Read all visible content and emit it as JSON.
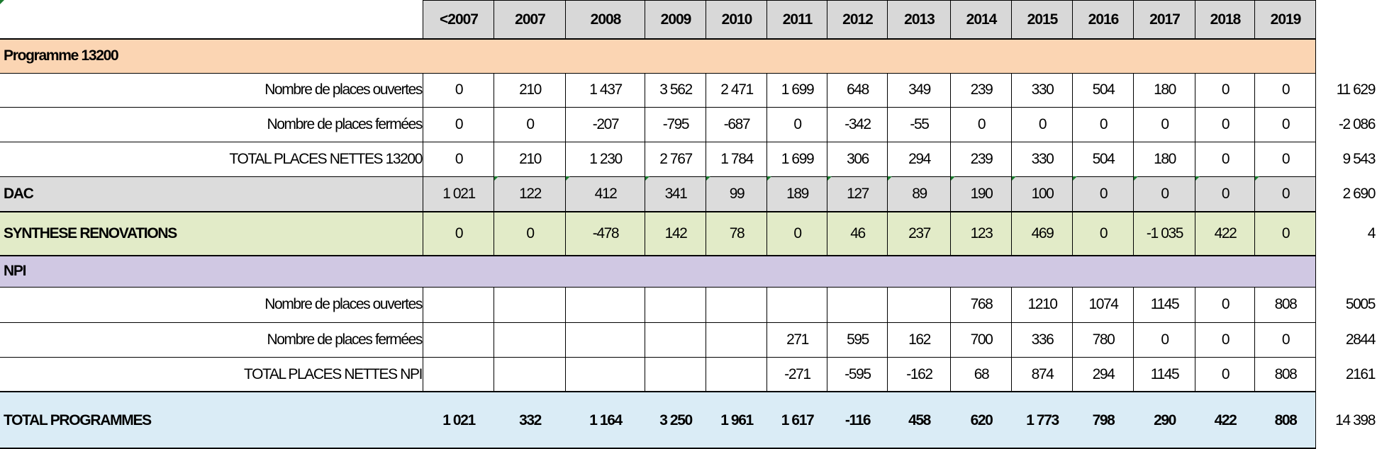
{
  "years": [
    "<2007",
    "2007",
    "2008",
    "2009",
    "2010",
    "2011",
    "2012",
    "2013",
    "2014",
    "2015",
    "2016",
    "2017",
    "2018",
    "2019"
  ],
  "colors": {
    "header_bg": "#d8d8d8",
    "programme_bg": "#fbd5b3",
    "dac_bg": "#dcdcdc",
    "synthese_bg": "#e2ebc8",
    "npi_bg": "#d0c8e3",
    "total_bg": "#daecf6",
    "marker": "#1b7a2e"
  },
  "rows": [
    {
      "id": "programme-13200",
      "kind": "section",
      "label": "Programme 13200",
      "bg": "programme"
    },
    {
      "id": "p13200-places-ouvertes",
      "kind": "data",
      "label": "Nombre de places ouvertes",
      "values": [
        "0",
        "210",
        "1 437",
        "3 562",
        "2 471",
        "1 699",
        "648",
        "349",
        "239",
        "330",
        "504",
        "180",
        "0",
        "0"
      ],
      "total": "11 629"
    },
    {
      "id": "p13200-places-fermees",
      "kind": "data",
      "label": "Nombre de places fermées",
      "values": [
        "0",
        "0",
        "-207",
        "-795",
        "-687",
        "0",
        "-342",
        "-55",
        "0",
        "0",
        "0",
        "0",
        "0",
        "0"
      ],
      "total": "-2 086"
    },
    {
      "id": "p13200-total-nettes",
      "kind": "data",
      "label": "TOTAL PLACES NETTES 13200",
      "values": [
        "0",
        "210",
        "1 230",
        "2 767",
        "1 784",
        "1 699",
        "306",
        "294",
        "239",
        "330",
        "504",
        "180",
        "0",
        "0"
      ],
      "total": "9 543"
    },
    {
      "id": "dac",
      "kind": "group",
      "label": "DAC",
      "bg": "dac",
      "values": [
        "1 021",
        "122",
        "412",
        "341",
        "99",
        "189",
        "127",
        "89",
        "190",
        "100",
        "0",
        "0",
        "0",
        "0"
      ],
      "total": "2 690"
    },
    {
      "id": "synthese-renovations",
      "kind": "group",
      "label": "SYNTHESE RENOVATIONS",
      "bg": "synthese",
      "values": [
        "0",
        "0",
        "-478",
        "142",
        "78",
        "0",
        "46",
        "237",
        "123",
        "469",
        "0",
        "-1 035",
        "422",
        "0"
      ],
      "total": "4"
    },
    {
      "id": "npi",
      "kind": "section",
      "label": "NPI",
      "bg": "npi"
    },
    {
      "id": "npi-places-ouvertes",
      "kind": "data",
      "label": "Nombre de places ouvertes",
      "values": [
        "",
        "",
        "",
        "",
        "",
        "",
        "",
        "",
        "768",
        "1210",
        "1074",
        "1145",
        "0",
        "808"
      ],
      "total": "5005"
    },
    {
      "id": "npi-places-fermees",
      "kind": "data",
      "label": "Nombre de places fermées",
      "values": [
        "",
        "",
        "",
        "",
        "",
        "271",
        "595",
        "162",
        "700",
        "336",
        "780",
        "0",
        "0",
        "0"
      ],
      "total": "2844"
    },
    {
      "id": "npi-total-nettes",
      "kind": "data",
      "label": "TOTAL PLACES  NETTES NPI",
      "values": [
        "",
        "",
        "",
        "",
        "",
        "-271",
        "-595",
        "-162",
        "68",
        "874",
        "294",
        "1145",
        "0",
        "808"
      ],
      "total": "2161"
    },
    {
      "id": "total-programmes",
      "kind": "total",
      "label": "TOTAL PROGRAMMES",
      "bg": "total",
      "values": [
        "1 021",
        "332",
        "1 164",
        "3 250",
        "1 961",
        "1 617",
        "-116",
        "458",
        "620",
        "1 773",
        "798",
        "290",
        "422",
        "808"
      ],
      "total": "14 398"
    }
  ]
}
